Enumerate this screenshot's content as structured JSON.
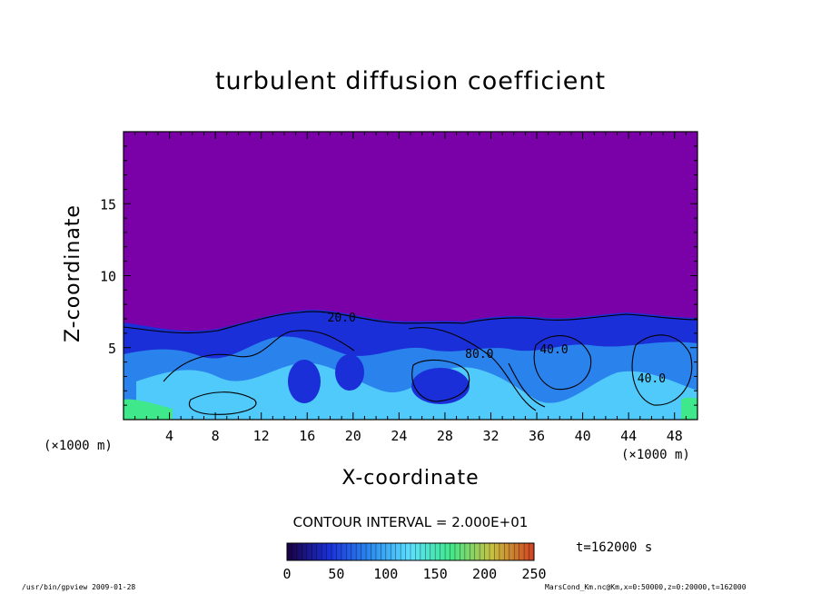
{
  "title": "turbulent diffusion coefficient",
  "xlabel": "X-coordinate",
  "ylabel": "Z-coordinate",
  "x_unit_left": "(×1000 m)",
  "x_unit_right": "(×1000 m)",
  "contour_interval": "CONTOUR INTERVAL = 2.000E+01",
  "time_label": "t=162000 s",
  "footer_left": "/usr/bin/gpview   2009-01-28",
  "footer_right": "MarsCond_Km.nc@Km,x=0:50000,z=0:20000,t=162000",
  "colors": {
    "background_field": "#7a00a8",
    "low_field": "#1a2fd8",
    "mid_field": "#2c8cf0",
    "high_field": "#5de0ff",
    "peak_field": "#40e88c"
  },
  "chart_data": {
    "type": "heatmap",
    "title": "turbulent diffusion coefficient",
    "xlabel": "X-coordinate",
    "ylabel": "Z-coordinate",
    "xlim": [
      0,
      50
    ],
    "ylim": [
      0,
      20
    ],
    "x_ticks": [
      4,
      8,
      12,
      16,
      20,
      24,
      28,
      32,
      36,
      40,
      44,
      48
    ],
    "y_ticks": [
      5,
      10,
      15
    ],
    "contour_labels": [
      {
        "text": "20.0",
        "x": 19,
        "z": 6.8
      },
      {
        "text": "80.0",
        "x": 31,
        "z": 4.3
      },
      {
        "text": "40.0",
        "x": 37.5,
        "z": 4.6
      },
      {
        "text": "40.0",
        "x": 46,
        "z": 2.6
      }
    ],
    "colorbar": {
      "min": 0,
      "max": 250,
      "ticks": [
        0,
        50,
        100,
        150,
        200,
        250
      ],
      "colors": [
        "#1a0040",
        "#1a2fd8",
        "#2c8cf0",
        "#5de0ff",
        "#40e88c",
        "#c8c040",
        "#d04020"
      ]
    },
    "grid": false,
    "legend": "colorbar-bottom"
  }
}
